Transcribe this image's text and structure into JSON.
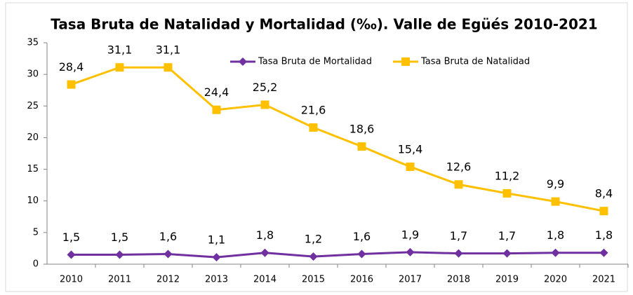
{
  "chart_data": {
    "type": "line",
    "title": "Tasa Bruta de Natalidad y Mortalidad (‰). Valle de Egüés 2010-2021",
    "categories": [
      "2010",
      "2011",
      "2012",
      "2013",
      "2014",
      "2015",
      "2016",
      "2017",
      "2018",
      "2019",
      "2020",
      "2021"
    ],
    "series": [
      {
        "name": "Tasa Bruta de Mortalidad",
        "color": "#7030a0",
        "marker": "diamond",
        "values": [
          1.5,
          1.5,
          1.6,
          1.1,
          1.8,
          1.2,
          1.6,
          1.9,
          1.7,
          1.7,
          1.8,
          1.8
        ],
        "value_labels": [
          "1,5",
          "1,5",
          "1,6",
          "1,1",
          "1,8",
          "1,2",
          "1,6",
          "1,9",
          "1,7",
          "1,7",
          "1,8",
          "1,8"
        ]
      },
      {
        "name": "Tasa Bruta de Natalidad",
        "color": "#ffc000",
        "marker": "square",
        "values": [
          28.4,
          31.1,
          31.1,
          24.4,
          25.2,
          21.6,
          18.6,
          15.4,
          12.6,
          11.2,
          9.9,
          8.4
        ],
        "value_labels": [
          "28,4",
          "31,1",
          "31,1",
          "24,4",
          "25,2",
          "21,6",
          "18,6",
          "15,4",
          "12,6",
          "11,2",
          "9,9",
          "8,4"
        ]
      }
    ],
    "ylim": [
      0,
      35
    ],
    "yticks": [
      0,
      5,
      10,
      15,
      20,
      25,
      30,
      35
    ],
    "grid": false,
    "legend": "top"
  }
}
